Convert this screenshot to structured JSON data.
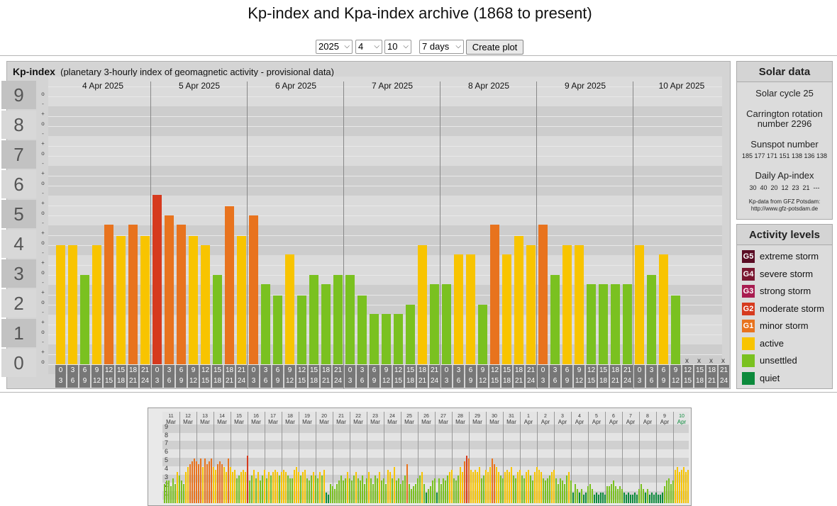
{
  "page_title": "Kp-index and Kpa-index archive (1868 to present)",
  "controls": {
    "year": "2025",
    "month": "4",
    "day": "10",
    "range": "7 days",
    "create_label": "Create plot"
  },
  "kp_panel": {
    "title": "Kp-index",
    "subtitle": "(planetary 3-hourly index of geomagnetic activity - provisional data)"
  },
  "scale": {
    "big": [
      "9",
      "8",
      "7",
      "6",
      "5",
      "4",
      "3",
      "2",
      "1",
      "0"
    ],
    "small_marks": [
      "o",
      "-",
      "+",
      "o",
      "-",
      "+",
      "o",
      "-",
      "+",
      "o",
      "-",
      "+",
      "o",
      "-",
      "+",
      "o",
      "-",
      "+",
      "o",
      "-",
      "+",
      "o",
      "-",
      "+",
      "o",
      "-",
      "+",
      "o"
    ]
  },
  "chart_data": {
    "type": "bar",
    "title": "Kp-index",
    "days": [
      "4 Apr 2025",
      "5 Apr 2025",
      "6 Apr 2025",
      "7 Apr 2025",
      "8 Apr 2025",
      "9 Apr 2025",
      "10 Apr 2025"
    ],
    "intervals_top": [
      "0",
      "3",
      "6",
      "9",
      "12",
      "15",
      "18",
      "21"
    ],
    "intervals_bottom": [
      "3",
      "6",
      "9",
      "12",
      "15",
      "18",
      "21",
      "24"
    ],
    "ylim": [
      0,
      9
    ],
    "values": [
      [
        4.0,
        4.0,
        3.0,
        4.0,
        4.7,
        4.3,
        4.7,
        4.3
      ],
      [
        5.7,
        5.0,
        4.7,
        4.3,
        4.0,
        3.0,
        5.3,
        4.3
      ],
      [
        5.0,
        2.7,
        2.3,
        3.7,
        2.3,
        3.0,
        2.7,
        3.0
      ],
      [
        3.0,
        2.3,
        1.7,
        1.7,
        1.7,
        2.0,
        4.0,
        2.7
      ],
      [
        2.7,
        3.7,
        3.7,
        2.0,
        4.7,
        3.7,
        4.3,
        4.0
      ],
      [
        4.7,
        3.0,
        4.0,
        4.0,
        2.7,
        2.7,
        2.7,
        2.7
      ],
      [
        4.0,
        3.0,
        3.7,
        2.3,
        null,
        null,
        null,
        null
      ]
    ],
    "missing_mark": "x"
  },
  "colors": {
    "g5": "#5a0c24",
    "g4": "#7a1630",
    "g3": "#a81c50",
    "g2": "#d63a1e",
    "g1": "#e8731e",
    "active": "#f8c400",
    "unsettled": "#7ac120",
    "quiet": "#0c8a3c"
  },
  "solar": {
    "title": "Solar data",
    "cycle": "Solar cycle 25",
    "carrington": "Carrington rotation number 2296",
    "sunspot_label": "Sunspot number",
    "sunspot_values": "185 177 171 151 138 136 138",
    "ap_label": "Daily Ap-index",
    "ap_values": "30  40  20  12  23  21  ---",
    "credit1": "Kp-data from GFZ Potsdam:",
    "credit2": "http://www.gfz-potsdam.de"
  },
  "activity": {
    "title": "Activity levels",
    "items": [
      {
        "code": "G5",
        "label": "extreme storm",
        "color": "#5a0c24"
      },
      {
        "code": "G4",
        "label": "severe storm",
        "color": "#7a1630"
      },
      {
        "code": "G3",
        "label": "strong storm",
        "color": "#a81c50"
      },
      {
        "code": "G2",
        "label": "moderate storm",
        "color": "#d63a1e"
      },
      {
        "code": "G1",
        "label": "minor storm",
        "color": "#e8731e"
      },
      {
        "code": "",
        "label": "active",
        "color": "#f8c400"
      },
      {
        "code": "",
        "label": "unsettled",
        "color": "#7ac120"
      },
      {
        "code": "",
        "label": "quiet",
        "color": "#0c8a3c"
      }
    ]
  },
  "overview": {
    "day_numbers": [
      "11",
      "12",
      "13",
      "14",
      "15",
      "16",
      "17",
      "18",
      "19",
      "20",
      "21",
      "22",
      "23",
      "24",
      "25",
      "26",
      "27",
      "28",
      "29",
      "30",
      "31",
      "1",
      "2",
      "3",
      "4",
      "5",
      "6",
      "7",
      "8",
      "9",
      "10"
    ],
    "months": [
      "Mar",
      "Mar",
      "Mar",
      "Mar",
      "Mar",
      "Mar",
      "Mar",
      "Mar",
      "Mar",
      "Mar",
      "Mar",
      "Mar",
      "Mar",
      "Mar",
      "Mar",
      "Mar",
      "Mar",
      "Mar",
      "Mar",
      "Mar",
      "Mar",
      "Apr",
      "Apr",
      "Apr",
      "Apr",
      "Apr",
      "Apr",
      "Apr",
      "Apr",
      "Apr",
      "Apr"
    ],
    "y_labels": [
      "9",
      "8",
      "7",
      "6",
      "5",
      "4",
      "3",
      "2",
      "1"
    ],
    "values": [
      2.3,
      2.7,
      2.7,
      2.0,
      3.0,
      2.3,
      3.7,
      3.3,
      2.7,
      2.3,
      3.7,
      4.3,
      4.7,
      5.0,
      5.3,
      5.0,
      4.7,
      5.3,
      4.3,
      5.3,
      4.7,
      5.0,
      5.3,
      4.3,
      4.0,
      4.7,
      5.0,
      4.7,
      4.3,
      3.7,
      5.3,
      4.3,
      3.7,
      4.0,
      3.0,
      3.3,
      3.7,
      4.0,
      3.7,
      5.7,
      2.7,
      3.3,
      4.0,
      3.0,
      3.7,
      2.7,
      3.3,
      4.0,
      3.0,
      3.7,
      3.3,
      3.7,
      4.0,
      3.7,
      3.3,
      3.7,
      4.0,
      3.7,
      3.3,
      3.0,
      3.0,
      4.0,
      4.3,
      3.7,
      3.3,
      3.7,
      4.0,
      3.0,
      2.7,
      3.3,
      3.7,
      3.3,
      3.0,
      3.7,
      3.3,
      4.0,
      1.3,
      1.0,
      2.3,
      2.0,
      1.7,
      2.3,
      2.7,
      3.3,
      2.7,
      3.0,
      3.7,
      3.0,
      2.7,
      3.3,
      3.7,
      3.0,
      2.7,
      3.3,
      2.3,
      3.0,
      3.7,
      3.0,
      2.3,
      3.3,
      3.0,
      3.7,
      2.7,
      3.0,
      2.3,
      4.0,
      3.7,
      3.0,
      4.3,
      2.7,
      3.0,
      2.3,
      2.7,
      3.3,
      4.7,
      2.3,
      1.7,
      2.0,
      2.3,
      3.0,
      3.3,
      3.7,
      2.3,
      1.3,
      1.7,
      2.0,
      2.7,
      3.0,
      1.3,
      3.0,
      2.3,
      3.0,
      2.7,
      3.3,
      3.7,
      4.0,
      3.0,
      2.7,
      3.3,
      4.3,
      3.7,
      5.0,
      5.7,
      5.3,
      4.0,
      3.7,
      4.0,
      3.7,
      4.3,
      3.0,
      3.3,
      4.0,
      3.7,
      4.3,
      5.3,
      4.7,
      4.3,
      3.7,
      3.3,
      3.0,
      3.7,
      4.0,
      3.7,
      4.3,
      3.3,
      3.0,
      3.7,
      4.0,
      3.3,
      3.0,
      3.7,
      4.0,
      3.3,
      2.7,
      3.7,
      4.3,
      4.0,
      3.7,
      3.0,
      2.7,
      3.0,
      3.3,
      3.7,
      4.0,
      3.0,
      2.3,
      3.0,
      2.7,
      2.3,
      3.3,
      3.7,
      2.7,
      1.3,
      2.3,
      1.7,
      1.3,
      1.7,
      1.0,
      1.3,
      2.0,
      2.3,
      1.7,
      1.0,
      1.3,
      1.0,
      1.3,
      1.3,
      1.0,
      2.0,
      2.0,
      2.3,
      2.7,
      2.0,
      1.7,
      2.0,
      1.7,
      1.3,
      1.0,
      1.3,
      1.0,
      1.0,
      1.3,
      1.0,
      1.7,
      2.3,
      1.7,
      1.3,
      1.7,
      1.0,
      1.3,
      1.0,
      1.3,
      1.0,
      1.0,
      1.3,
      2.0,
      2.7,
      3.0,
      2.3,
      2.7,
      4.0,
      4.3,
      3.7,
      4.0,
      4.3,
      3.7,
      4.0,
      4.7,
      4.3,
      4.0,
      3.7,
      4.3,
      3.3,
      4.0,
      3.3,
      4.3,
      4.0,
      4.3,
      4.7,
      4.0,
      3.7,
      4.3,
      4.7,
      5.0,
      4.3,
      4.0,
      3.7,
      3.0,
      2.7,
      3.0,
      3.7,
      4.3,
      4.0,
      4.7,
      4.3,
      4.7,
      5.3,
      4.3,
      5.7,
      5.0,
      4.7,
      4.3,
      4.0,
      3.0,
      5.0,
      2.7,
      2.3,
      3.7,
      2.3,
      3.0,
      2.7,
      3.0,
      3.0,
      2.3,
      1.7,
      1.7,
      1.7,
      2.0,
      4.0,
      2.7,
      2.7,
      3.7,
      3.7,
      2.0,
      4.7,
      3.7,
      4.3,
      4.0,
      4.7,
      3.0,
      4.0,
      4.0,
      2.7,
      2.7,
      2.7,
      2.7,
      4.0,
      3.0,
      3.7,
      2.3
    ]
  }
}
